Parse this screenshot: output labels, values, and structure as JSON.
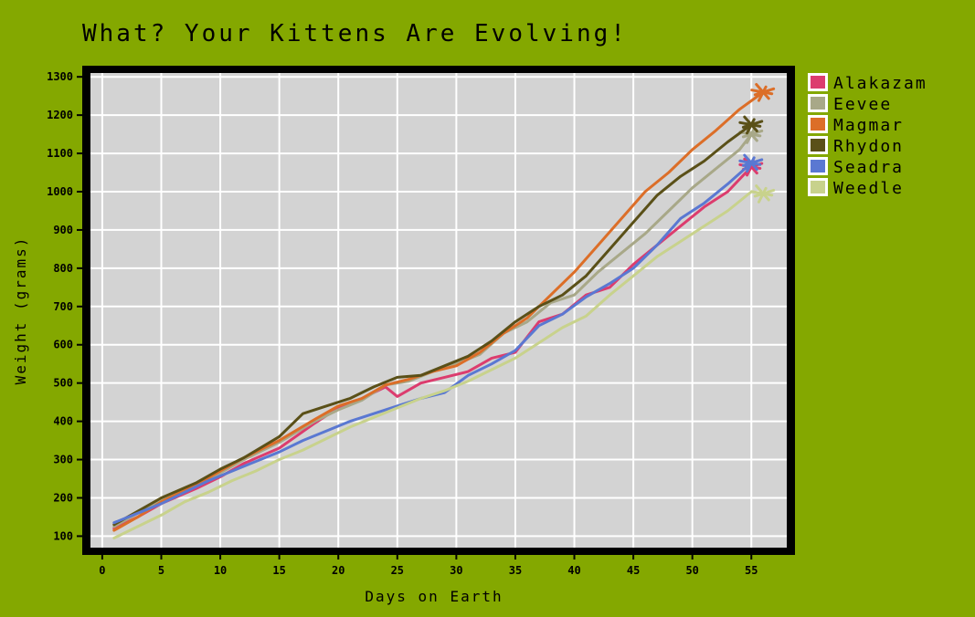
{
  "chart_data": {
    "type": "line",
    "title": "What? Your Kittens Are Evolving!",
    "xlabel": "Days on Earth",
    "ylabel": "Weight (grams)",
    "xlim": [
      -1,
      58
    ],
    "ylim": [
      70,
      1310
    ],
    "xticks": [
      0,
      5,
      10,
      15,
      20,
      25,
      30,
      35,
      40,
      45,
      50,
      55
    ],
    "yticks": [
      100,
      200,
      300,
      400,
      500,
      600,
      700,
      800,
      900,
      1000,
      1100,
      1200,
      1300
    ],
    "grid": true,
    "legend_position": "outside-right-top",
    "plot_background": "#d3d3d3",
    "page_background": "#84a800",
    "series": [
      {
        "name": "Alakazam",
        "color": "#dc3c6e",
        "x": [
          1,
          3,
          5,
          8,
          10,
          12,
          15,
          18,
          20,
          22,
          24,
          25,
          27,
          29,
          31,
          33,
          35,
          37,
          39,
          41,
          43,
          45,
          47,
          49,
          51,
          53,
          55
        ],
        "y": [
          120,
          150,
          185,
          225,
          255,
          290,
          330,
          395,
          435,
          460,
          490,
          465,
          500,
          515,
          530,
          565,
          580,
          660,
          680,
          730,
          750,
          810,
          860,
          910,
          960,
          1000,
          1065
        ]
      },
      {
        "name": "Eevee",
        "color": "#a8a888",
        "x": [
          1,
          3,
          5,
          8,
          10,
          12,
          15,
          18,
          20,
          22,
          24,
          26,
          28,
          30,
          32,
          34,
          36,
          38,
          40,
          42,
          44,
          46,
          48,
          50,
          52,
          54,
          55
        ],
        "y": [
          125,
          160,
          195,
          235,
          265,
          300,
          345,
          400,
          430,
          455,
          495,
          505,
          530,
          550,
          575,
          630,
          660,
          710,
          730,
          790,
          840,
          890,
          950,
          1010,
          1060,
          1110,
          1150
        ]
      },
      {
        "name": "Magmar",
        "color": "#dc6e28",
        "x": [
          1,
          3,
          5,
          8,
          10,
          12,
          15,
          18,
          20,
          22,
          24,
          26,
          28,
          30,
          32,
          34,
          36,
          38,
          40,
          42,
          44,
          46,
          48,
          50,
          52,
          54,
          56
        ],
        "y": [
          115,
          150,
          190,
          235,
          270,
          305,
          350,
          405,
          440,
          460,
          495,
          510,
          530,
          545,
          580,
          630,
          670,
          730,
          790,
          860,
          930,
          1000,
          1050,
          1110,
          1160,
          1215,
          1260
        ]
      },
      {
        "name": "Rhydon",
        "color": "#5a5018",
        "x": [
          1,
          3,
          5,
          8,
          10,
          12,
          15,
          17,
          19,
          21,
          23,
          25,
          27,
          29,
          31,
          33,
          35,
          37,
          39,
          41,
          43,
          45,
          47,
          49,
          51,
          53,
          55
        ],
        "y": [
          130,
          165,
          200,
          240,
          275,
          305,
          360,
          420,
          440,
          460,
          490,
          515,
          520,
          545,
          570,
          610,
          660,
          700,
          730,
          780,
          850,
          920,
          990,
          1040,
          1080,
          1130,
          1175
        ]
      },
      {
        "name": "Seadra",
        "color": "#5a78d2",
        "x": [
          1,
          3,
          5,
          7,
          9,
          11,
          13,
          15,
          17,
          19,
          21,
          23,
          25,
          27,
          29,
          31,
          33,
          35,
          37,
          39,
          41,
          43,
          45,
          47,
          49,
          51,
          53,
          55
        ],
        "y": [
          135,
          160,
          185,
          215,
          245,
          270,
          295,
          320,
          350,
          375,
          400,
          420,
          440,
          460,
          475,
          520,
          550,
          585,
          650,
          680,
          725,
          760,
          800,
          860,
          930,
          970,
          1020,
          1075
        ]
      },
      {
        "name": "Weedle",
        "color": "#c8d28c",
        "x": [
          1,
          3,
          5,
          7,
          9,
          11,
          13,
          15,
          17,
          19,
          21,
          23,
          25,
          27,
          29,
          31,
          33,
          35,
          37,
          39,
          41,
          43,
          45,
          47,
          49,
          51,
          53,
          55,
          56
        ],
        "y": [
          95,
          125,
          155,
          190,
          215,
          245,
          270,
          300,
          325,
          355,
          385,
          410,
          435,
          460,
          480,
          505,
          535,
          565,
          605,
          645,
          675,
          730,
          780,
          830,
          870,
          910,
          950,
          1000,
          995
        ]
      }
    ]
  }
}
